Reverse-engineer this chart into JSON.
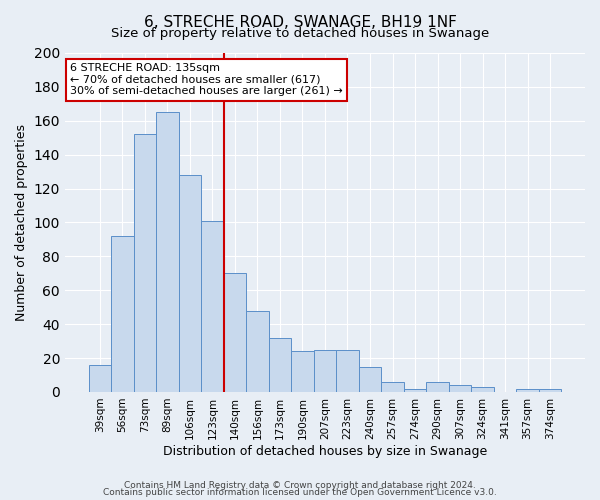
{
  "title": "6, STRECHE ROAD, SWANAGE, BH19 1NF",
  "subtitle": "Size of property relative to detached houses in Swanage",
  "xlabel": "Distribution of detached houses by size in Swanage",
  "ylabel": "Number of detached properties",
  "categories": [
    "39sqm",
    "56sqm",
    "73sqm",
    "89sqm",
    "106sqm",
    "123sqm",
    "140sqm",
    "156sqm",
    "173sqm",
    "190sqm",
    "207sqm",
    "223sqm",
    "240sqm",
    "257sqm",
    "274sqm",
    "290sqm",
    "307sqm",
    "324sqm",
    "341sqm",
    "357sqm",
    "374sqm"
  ],
  "values": [
    16,
    92,
    152,
    165,
    128,
    101,
    70,
    48,
    32,
    24,
    25,
    25,
    15,
    6,
    2,
    6,
    4,
    3,
    0,
    2,
    2
  ],
  "bar_color": "#c8d9ed",
  "bar_edge_color": "#5b8fc9",
  "ylim": [
    0,
    200
  ],
  "yticks": [
    0,
    20,
    40,
    60,
    80,
    100,
    120,
    140,
    160,
    180,
    200
  ],
  "red_line_x": 6.0,
  "annotation_title": "6 STRECHE ROAD: 135sqm",
  "annotation_line1": "← 70% of detached houses are smaller (617)",
  "annotation_line2": "30% of semi-detached houses are larger (261) →",
  "annotation_box_color": "#ffffff",
  "annotation_box_edge": "#cc0000",
  "footer1": "Contains HM Land Registry data © Crown copyright and database right 2024.",
  "footer2": "Contains public sector information licensed under the Open Government Licence v3.0.",
  "background_color": "#e8eef5",
  "plot_background": "#e8eef5",
  "grid_color": "#ffffff",
  "title_fontsize": 11,
  "subtitle_fontsize": 9.5,
  "red_line_color": "#cc0000"
}
